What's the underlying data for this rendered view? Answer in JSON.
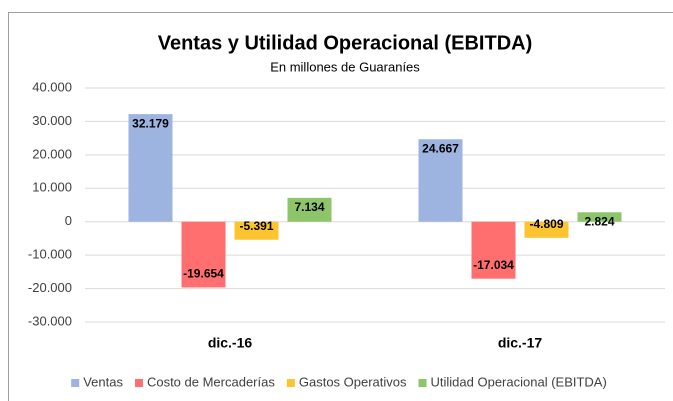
{
  "chart_data": {
    "type": "bar",
    "title": "Ventas y Utilidad Operacional (EBITDA)",
    "subtitle": "En millones de Guaraníes",
    "categories": [
      "dic.-16",
      "dic.-17"
    ],
    "series": [
      {
        "name": "Ventas",
        "color": "#9db3e0",
        "values": [
          32179,
          24667
        ],
        "value_labels": [
          "32.179",
          "24.667"
        ]
      },
      {
        "name": "Costo de Mercaderías",
        "color": "#ff6f6f",
        "values": [
          -19654,
          -17034
        ],
        "value_labels": [
          "-19.654",
          "-17.034"
        ]
      },
      {
        "name": "Gastos Operativos",
        "color": "#fcc52f",
        "values": [
          -5391,
          -4809
        ],
        "value_labels": [
          "-5.391",
          "-4.809"
        ]
      },
      {
        "name": "Utilidad Operacional (EBITDA)",
        "color": "#8ec56b",
        "values": [
          7134,
          2824
        ],
        "value_labels": [
          "7.134",
          "2.824"
        ]
      }
    ],
    "ylim": [
      -30000,
      40000
    ],
    "yticks": [
      {
        "value": -30000,
        "label": "-30.000"
      },
      {
        "value": -20000,
        "label": "-20.000"
      },
      {
        "value": -10000,
        "label": "-10.000"
      },
      0,
      {
        "value": 10000,
        "label": "10.000"
      },
      {
        "value": 20000,
        "label": "20.000"
      },
      {
        "value": 30000,
        "label": "30.000"
      },
      {
        "value": 40000,
        "label": "40.000"
      }
    ],
    "grid": true,
    "legend": "bottom"
  }
}
